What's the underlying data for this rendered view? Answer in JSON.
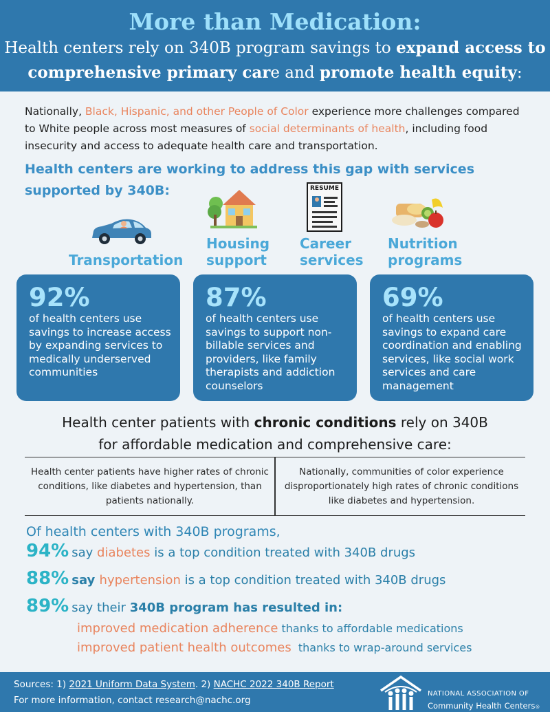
{
  "header": {
    "title": "More than Medication:",
    "sub_a": "Health centers rely on 340B program savings to ",
    "sub_b": "expand access to",
    "sub_c": "comprehensive primary car",
    "sub_d": "e and ",
    "sub_e": "promote health equity",
    "sub_f": ":"
  },
  "intro": {
    "a": "Nationally, ",
    "b": "Black, Hispanic, and other People of Color",
    "c": " experience more challenges compared to White people across most measures of ",
    "d": "social determinants of health",
    "e": ", including food insecurity and access to adequate health care and transportation."
  },
  "gap_heading": {
    "line1": "Health centers are working to address this gap with services",
    "line2": "supported by 340B:"
  },
  "services": [
    {
      "label": "Transportation",
      "icon": "car-icon"
    },
    {
      "line1": "Housing",
      "line2": "support",
      "icon": "house-icon"
    },
    {
      "line1": "Career",
      "line2": "services",
      "icon": "resume-icon",
      "icon_text": "RESUME"
    },
    {
      "line1": "Nutrition",
      "line2": "programs",
      "icon": "food-icon"
    }
  ],
  "stats": [
    {
      "pct": "92%",
      "desc": "of health centers use savings to increase access by expanding services to medically underserved communities"
    },
    {
      "pct": "87%",
      "desc": "of health centers use savings to support non-billable services and providers, like family therapists and addiction counselors"
    },
    {
      "pct": "69%",
      "desc": "of health centers use savings to expand care coordination and enabling services, like social work services and care management"
    }
  ],
  "chronic_heading": {
    "a": "Health center patients with ",
    "b": "chronic conditions",
    "c": " rely on 340B",
    "line2": "for affordable medication and comprehensive care:"
  },
  "compare": {
    "left": "Health center patients have higher rates of chronic conditions, like diabetes and hypertension, than patients nationally.",
    "right": "Nationally, communities of color experience disproportionately high rates of chronic conditions like diabetes and hypertension."
  },
  "survey": {
    "intro": "Of health centers with 340B programs,",
    "l1": {
      "pct": "94%",
      "a": "say ",
      "b": "diabetes",
      "c": " is a top condition treated with 340B drugs"
    },
    "l2": {
      "pct": "88%",
      "a": "say ",
      "b": "hypertension",
      "c": " is a top condition treated with 340B drugs"
    },
    "l3": {
      "pct": "89%",
      "a": "say their ",
      "b": "340B program has resulted in:"
    },
    "o1": {
      "main": "improved medication adherence",
      "note": " thanks to affordable medications"
    },
    "o2": {
      "main": "improved patient health outcomes",
      "note": "  thanks to wrap-around services"
    }
  },
  "footer": {
    "sources_a": "Sources: 1) ",
    "sources_link1": "2021 Uniform Data System",
    "sources_b": ". 2) ",
    "sources_link2": "NACHC 2022 340B Report",
    "more": "For more information, contact research@nachc.org",
    "logo_line1": "NATIONAL ASSOCIATION OF",
    "logo_line2": "Community Health Centers",
    "logo_reg": "®"
  },
  "colors": {
    "primary_blue": "#2f78ad",
    "light_blue": "#a8e3fb",
    "accent_orange": "#e9845d",
    "teal": "#2bb3c6"
  }
}
